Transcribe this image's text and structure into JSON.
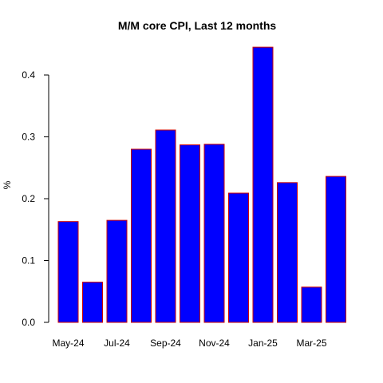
{
  "chart_data": {
    "type": "bar",
    "title": "M/M core CPI, Last 12 months",
    "xlabel": "",
    "ylabel": "%",
    "categories": [
      "May-24",
      "Jun-24",
      "Jul-24",
      "Aug-24",
      "Sep-24",
      "Oct-24",
      "Nov-24",
      "Dec-24",
      "Jan-25",
      "Feb-25",
      "Mar-25",
      "Apr-25"
    ],
    "values": [
      0.163,
      0.065,
      0.165,
      0.28,
      0.311,
      0.287,
      0.288,
      0.209,
      0.445,
      0.226,
      0.057,
      0.236
    ],
    "x_tick_labels": [
      "May-24",
      "Jul-24",
      "Sep-24",
      "Nov-24",
      "Jan-25",
      "Mar-25"
    ],
    "y_ticks": [
      "0.0",
      "0.1",
      "0.2",
      "0.3",
      "0.4"
    ],
    "ylim": [
      0,
      0.445
    ],
    "grid": false,
    "bar_fill": "#0000ff",
    "bar_border": "#cc0000"
  }
}
